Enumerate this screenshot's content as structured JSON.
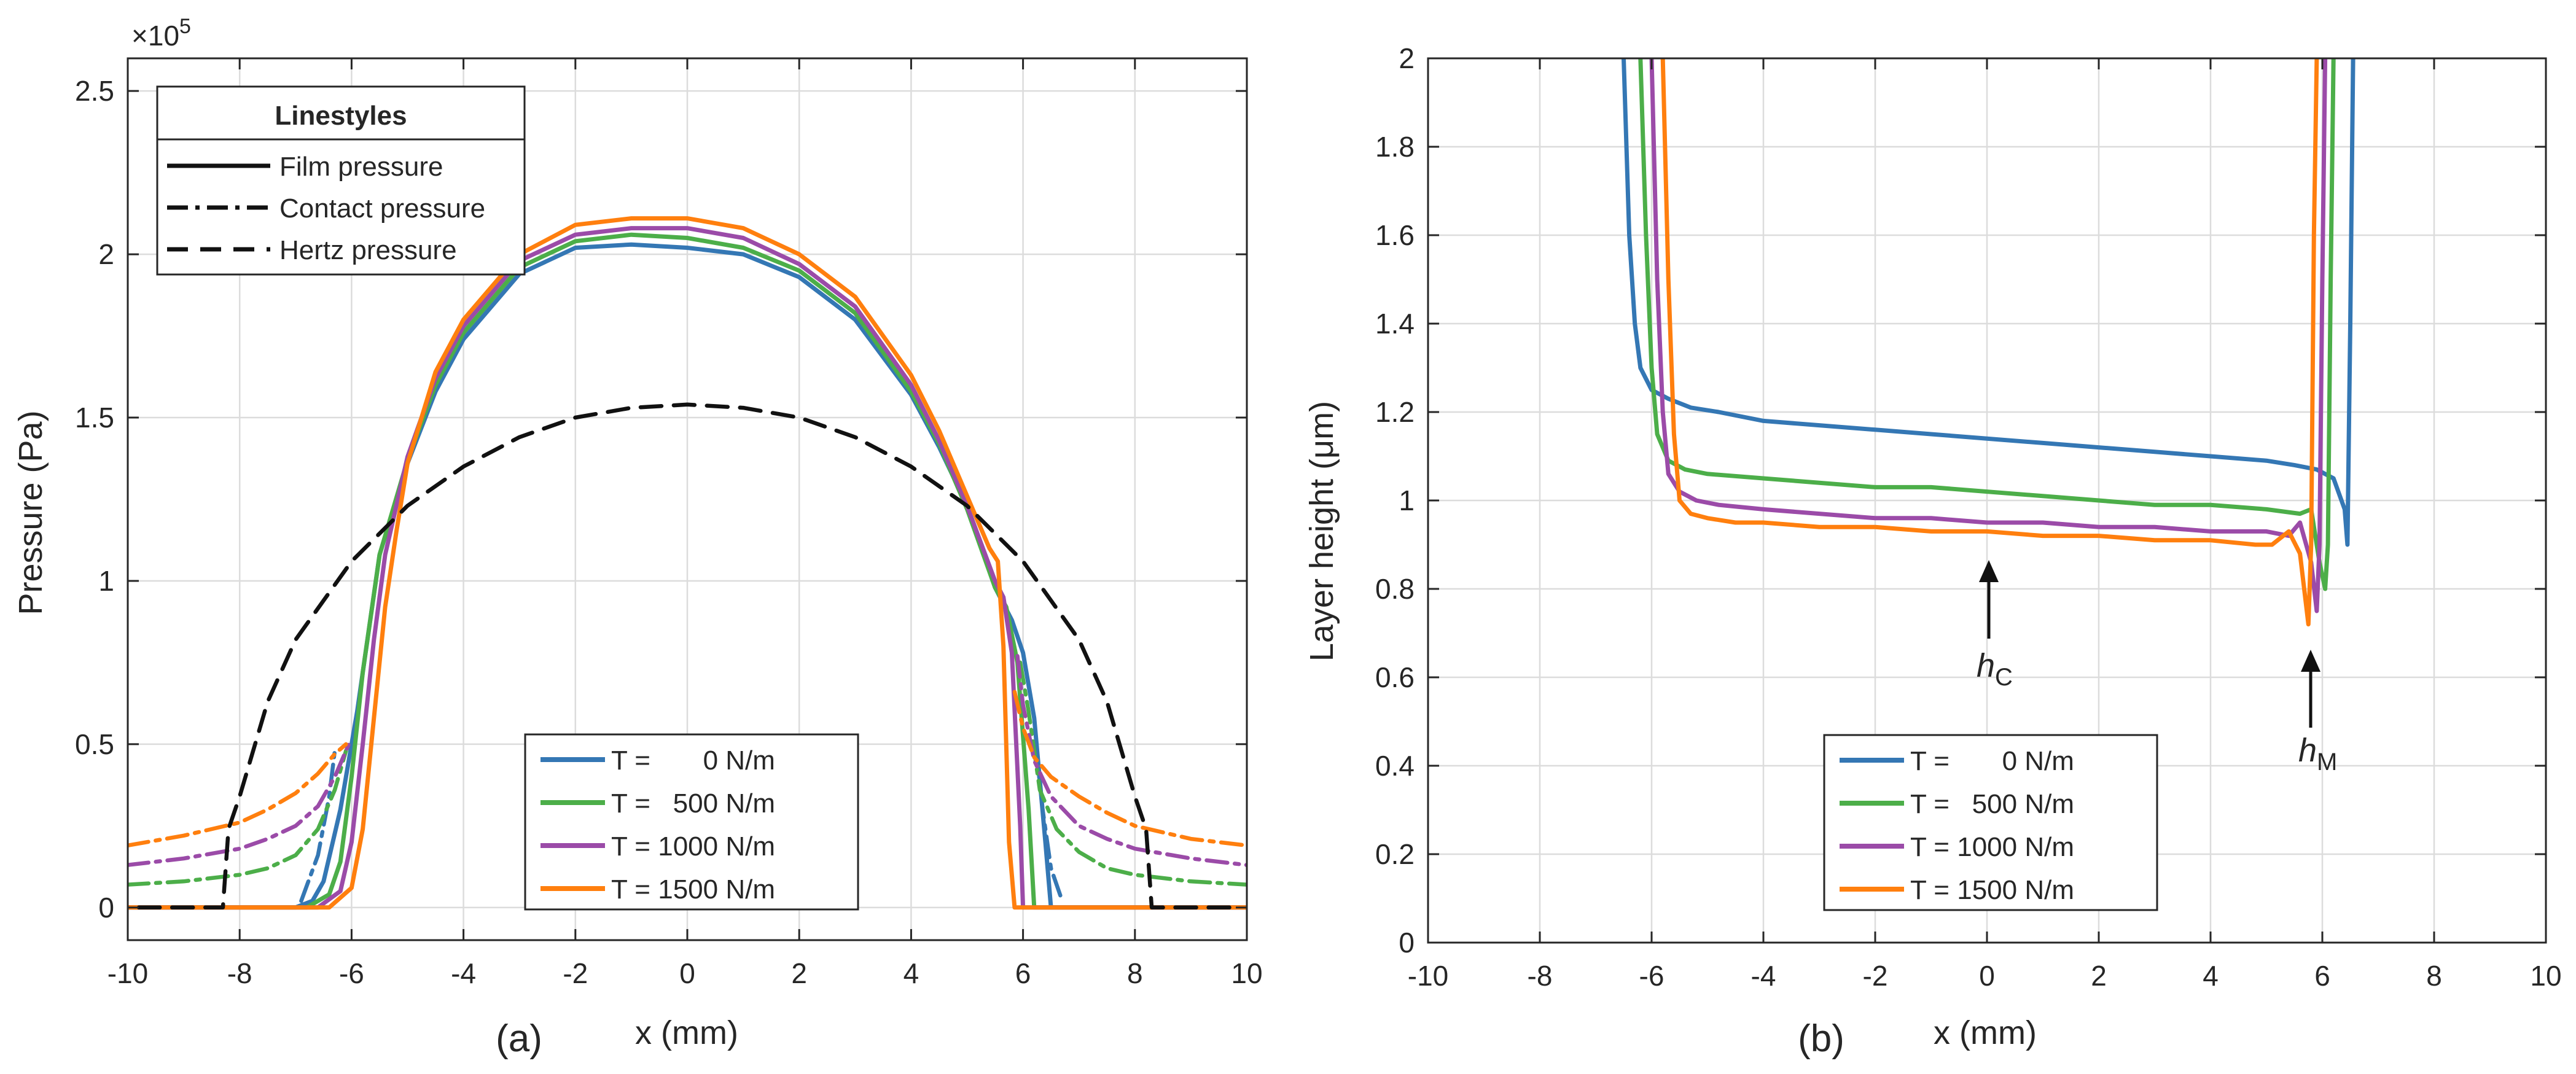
{
  "chart_data": [
    {
      "id": "a",
      "type": "line",
      "panel_label": "(a)",
      "xlabel": "x (mm)",
      "ylabel": "Pressure (Pa)",
      "exponent_label": "×10",
      "exponent_power": "5",
      "xlim": [
        -10,
        10
      ],
      "ylim": [
        -0.1,
        2.6
      ],
      "xticks": [
        -10,
        -8,
        -6,
        -4,
        -2,
        0,
        2,
        4,
        6,
        8,
        10
      ],
      "xtick_labels": [
        "-10",
        "-8",
        "-6",
        "-4",
        "-2",
        "0",
        "2",
        "4",
        "6",
        "8",
        "10"
      ],
      "yticks": [
        0,
        0.5,
        1,
        1.5,
        2,
        2.5
      ],
      "ytick_labels": [
        "0",
        "0.5",
        "1",
        "1.5",
        "2",
        "2.5"
      ],
      "grid": true,
      "linestyle_legend": {
        "title": "Linestyles",
        "position": "top-left",
        "entries": [
          {
            "label": "Film pressure",
            "style": "solid"
          },
          {
            "label": "Contact pressure",
            "style": "dashdot"
          },
          {
            "label": "Hertz pressure",
            "style": "dashed"
          }
        ]
      },
      "legend": {
        "position": "bottom-center",
        "entries": [
          {
            "label": "T =       0 N/m",
            "color": "#3477b4"
          },
          {
            "label": "T =   500 N/m",
            "color": "#4cae49"
          },
          {
            "label": "T = 1000 N/m",
            "color": "#9b4ba8"
          },
          {
            "label": "T = 1500 N/m",
            "color": "#ff7f0e"
          }
        ]
      },
      "series": [
        {
          "name": "Film pressure, T = 0 N/m",
          "color": "#3477b4",
          "style": "solid",
          "x": [
            -10,
            -7.0,
            -6.7,
            -6.5,
            -6.2,
            -5.9,
            -5.5,
            -5.0,
            -4.5,
            -4.0,
            -3.0,
            -2.0,
            -1.0,
            0,
            1.0,
            2.0,
            3.0,
            4.0,
            4.5,
            5.0,
            5.5,
            5.8,
            6.0,
            6.2,
            6.4,
            6.5,
            10
          ],
          "y": [
            0,
            0,
            0.02,
            0.08,
            0.3,
            0.6,
            1.08,
            1.36,
            1.58,
            1.74,
            1.94,
            2.02,
            2.03,
            2.02,
            2.0,
            1.93,
            1.8,
            1.57,
            1.41,
            1.23,
            0.98,
            0.88,
            0.78,
            0.58,
            0.2,
            0,
            0
          ]
        },
        {
          "name": "Film pressure, T = 500 N/m",
          "color": "#4cae49",
          "style": "solid",
          "x": [
            -10,
            -6.8,
            -6.4,
            -6.2,
            -6.0,
            -5.8,
            -5.5,
            -5.0,
            -4.5,
            -4.0,
            -3.0,
            -2.0,
            -1.0,
            0,
            1.0,
            2.0,
            3.0,
            4.0,
            4.5,
            5.0,
            5.5,
            5.7,
            5.9,
            6.1,
            6.2,
            10
          ],
          "y": [
            0,
            0,
            0.04,
            0.14,
            0.4,
            0.72,
            1.08,
            1.37,
            1.6,
            1.76,
            1.96,
            2.04,
            2.06,
            2.05,
            2.02,
            1.95,
            1.82,
            1.58,
            1.42,
            1.22,
            0.98,
            0.92,
            0.75,
            0.3,
            0,
            0
          ]
        },
        {
          "name": "Film pressure, T = 1000 N/m",
          "color": "#9b4ba8",
          "style": "solid",
          "x": [
            -10,
            -6.6,
            -6.2,
            -6.0,
            -5.8,
            -5.6,
            -5.4,
            -5.0,
            -4.5,
            -4.0,
            -3.0,
            -2.0,
            -1.0,
            0,
            1.0,
            2.0,
            3.0,
            4.0,
            4.5,
            5.0,
            5.5,
            5.65,
            5.8,
            5.95,
            6.0,
            10
          ],
          "y": [
            0,
            0,
            0.05,
            0.2,
            0.5,
            0.82,
            1.08,
            1.38,
            1.62,
            1.78,
            1.98,
            2.06,
            2.08,
            2.08,
            2.05,
            1.97,
            1.84,
            1.6,
            1.43,
            1.23,
            1.0,
            0.95,
            0.78,
            0.25,
            0,
            0
          ]
        },
        {
          "name": "Film pressure, T = 1500 N/m",
          "color": "#ff7f0e",
          "style": "solid",
          "x": [
            -10,
            -6.4,
            -6.0,
            -5.8,
            -5.6,
            -5.4,
            -5.2,
            -5.0,
            -4.5,
            -4.0,
            -3.0,
            -2.0,
            -1.0,
            0,
            1.0,
            2.0,
            3.0,
            4.0,
            4.5,
            5.0,
            5.4,
            5.55,
            5.65,
            5.75,
            5.85,
            10
          ],
          "y": [
            0,
            0,
            0.06,
            0.24,
            0.58,
            0.92,
            1.15,
            1.36,
            1.64,
            1.8,
            2.0,
            2.09,
            2.11,
            2.11,
            2.08,
            2.0,
            1.87,
            1.63,
            1.46,
            1.26,
            1.1,
            1.06,
            0.8,
            0.2,
            0,
            0
          ]
        },
        {
          "name": "Contact pressure, T = 0 N/m (left)",
          "color": "#3477b4",
          "style": "dashdot",
          "x": [
            -6.9,
            -6.6,
            -6.4,
            -6.3
          ],
          "y": [
            0.02,
            0.16,
            0.34,
            0.48
          ]
        },
        {
          "name": "Contact pressure, T = 0 N/m (right)",
          "color": "#3477b4",
          "style": "dashdot",
          "x": [
            6.25,
            6.35,
            6.5,
            6.7
          ],
          "y": [
            0.46,
            0.3,
            0.12,
            0.02
          ]
        },
        {
          "name": "Contact pressure, T = 500 N/m (left)",
          "color": "#4cae49",
          "style": "dashdot",
          "x": [
            -10,
            -9,
            -8,
            -7.5,
            -7,
            -6.6,
            -6.3,
            -6.1
          ],
          "y": [
            0.07,
            0.08,
            0.1,
            0.12,
            0.16,
            0.24,
            0.36,
            0.48
          ]
        },
        {
          "name": "Contact pressure, T = 500 N/m (right)",
          "color": "#4cae49",
          "style": "dashdot",
          "x": [
            5.95,
            6.1,
            6.3,
            6.6,
            7,
            7.5,
            8,
            9,
            10
          ],
          "y": [
            0.75,
            0.6,
            0.36,
            0.24,
            0.17,
            0.12,
            0.1,
            0.08,
            0.07
          ]
        },
        {
          "name": "Contact pressure, T = 1000 N/m (left)",
          "color": "#9b4ba8",
          "style": "dashdot",
          "x": [
            -10,
            -9,
            -8,
            -7.5,
            -7,
            -6.6,
            -6.3,
            -6.05
          ],
          "y": [
            0.13,
            0.15,
            0.18,
            0.21,
            0.25,
            0.31,
            0.4,
            0.5
          ]
        },
        {
          "name": "Contact pressure, T = 1000 N/m (right)",
          "color": "#9b4ba8",
          "style": "dashdot",
          "x": [
            5.9,
            6.0,
            6.2,
            6.5,
            7,
            7.5,
            8,
            9,
            10
          ],
          "y": [
            0.77,
            0.62,
            0.45,
            0.34,
            0.25,
            0.21,
            0.18,
            0.15,
            0.13
          ]
        },
        {
          "name": "Contact pressure, T = 1500 N/m (left)",
          "color": "#ff7f0e",
          "style": "dashdot",
          "x": [
            -10,
            -9,
            -8,
            -7.5,
            -7,
            -6.6,
            -6.3,
            -6.1
          ],
          "y": [
            0.19,
            0.22,
            0.26,
            0.3,
            0.35,
            0.41,
            0.47,
            0.5
          ]
        },
        {
          "name": "Contact pressure, T = 1500 N/m (right)",
          "color": "#ff7f0e",
          "style": "dashdot",
          "x": [
            5.85,
            6.0,
            6.2,
            6.5,
            7,
            7.5,
            8,
            9,
            10
          ],
          "y": [
            0.66,
            0.55,
            0.46,
            0.4,
            0.34,
            0.29,
            0.25,
            0.21,
            0.19
          ]
        },
        {
          "name": "Hertz pressure",
          "color": "#111111",
          "style": "dashed",
          "x": [
            -9.8,
            -8.3,
            -8.2,
            -8.0,
            -7.5,
            -7.0,
            -6.0,
            -5.0,
            -4.0,
            -3.0,
            -2.0,
            -1.0,
            0,
            1.0,
            2.0,
            3.0,
            4.0,
            5.0,
            6.0,
            7.0,
            7.5,
            8.0,
            8.2,
            8.3,
            9.8
          ],
          "y": [
            0,
            0,
            0.24,
            0.34,
            0.63,
            0.82,
            1.06,
            1.23,
            1.35,
            1.44,
            1.5,
            1.53,
            1.54,
            1.53,
            1.5,
            1.44,
            1.35,
            1.23,
            1.06,
            0.82,
            0.63,
            0.34,
            0.24,
            0,
            0
          ]
        }
      ]
    },
    {
      "id": "b",
      "type": "line",
      "panel_label": "(b)",
      "xlabel": "x (mm)",
      "ylabel": "Layer height (μm)",
      "xlim": [
        -10,
        10
      ],
      "ylim": [
        0,
        2
      ],
      "xticks": [
        -10,
        -8,
        -6,
        -4,
        -2,
        0,
        2,
        4,
        6,
        8,
        10
      ],
      "xtick_labels": [
        "-10",
        "-8",
        "-6",
        "-4",
        "-2",
        "0",
        "2",
        "4",
        "6",
        "8",
        "10"
      ],
      "yticks": [
        0,
        0.2,
        0.4,
        0.6,
        0.8,
        1,
        1.2,
        1.4,
        1.6,
        1.8,
        2
      ],
      "ytick_labels": [
        "0",
        "0.2",
        "0.4",
        "0.6",
        "0.8",
        "1",
        "1.2",
        "1.4",
        "1.6",
        "1.8",
        "2"
      ],
      "grid": true,
      "annotations": [
        {
          "label": "h",
          "subscript": "C",
          "arrow_to": [
            0,
            0.86
          ],
          "arrow_from": [
            0,
            0.68
          ]
        },
        {
          "label": "h",
          "subscript": "M",
          "arrow_to": [
            5.8,
            0.66
          ],
          "arrow_from": [
            5.8,
            0.48
          ]
        }
      ],
      "legend": {
        "position": "bottom-center",
        "entries": [
          {
            "label": "T =       0 N/m",
            "color": "#3477b4"
          },
          {
            "label": "T =   500 N/m",
            "color": "#4cae49"
          },
          {
            "label": "T = 1000 N/m",
            "color": "#9b4ba8"
          },
          {
            "label": "T = 1500 N/m",
            "color": "#ff7f0e"
          }
        ]
      },
      "series": [
        {
          "name": "T = 0 N/m",
          "color": "#3477b4",
          "style": "solid",
          "x": [
            -6.5,
            -6.4,
            -6.3,
            -6.2,
            -6.0,
            -5.7,
            -5.3,
            -4.8,
            -4.0,
            -3.0,
            -2.0,
            -1.0,
            0,
            1.0,
            2.0,
            3.0,
            4.0,
            5.0,
            5.5,
            5.9,
            6.2,
            6.4,
            6.45,
            6.5,
            6.55
          ],
          "y": [
            2.0,
            1.6,
            1.4,
            1.3,
            1.25,
            1.23,
            1.21,
            1.2,
            1.18,
            1.17,
            1.16,
            1.15,
            1.14,
            1.13,
            1.12,
            1.11,
            1.1,
            1.09,
            1.08,
            1.07,
            1.05,
            0.98,
            0.9,
            1.4,
            2.0
          ]
        },
        {
          "name": "T = 500 N/m",
          "color": "#4cae49",
          "style": "solid",
          "x": [
            -6.2,
            -6.1,
            -6.0,
            -5.9,
            -5.7,
            -5.4,
            -5.0,
            -4.0,
            -3.0,
            -2.0,
            -1.0,
            0,
            1.0,
            2.0,
            3.0,
            4.0,
            5.0,
            5.6,
            5.8,
            5.95,
            6.05,
            6.1,
            6.15,
            6.2
          ],
          "y": [
            2.0,
            1.6,
            1.3,
            1.15,
            1.09,
            1.07,
            1.06,
            1.05,
            1.04,
            1.03,
            1.03,
            1.02,
            1.01,
            1.0,
            0.99,
            0.99,
            0.98,
            0.97,
            0.98,
            0.86,
            0.8,
            0.9,
            1.5,
            2.0
          ]
        },
        {
          "name": "T = 1000 N/m",
          "color": "#9b4ba8",
          "style": "solid",
          "x": [
            -6.0,
            -5.9,
            -5.8,
            -5.7,
            -5.5,
            -5.2,
            -4.8,
            -4.0,
            -3.0,
            -2.0,
            -1.0,
            0,
            1.0,
            2.0,
            3.0,
            4.0,
            5.0,
            5.4,
            5.6,
            5.8,
            5.9,
            5.95,
            6.0,
            6.05
          ],
          "y": [
            2.0,
            1.5,
            1.2,
            1.06,
            1.02,
            1.0,
            0.99,
            0.98,
            0.97,
            0.96,
            0.96,
            0.95,
            0.95,
            0.94,
            0.94,
            0.93,
            0.93,
            0.92,
            0.95,
            0.86,
            0.75,
            0.9,
            1.5,
            2.0
          ]
        },
        {
          "name": "T = 1500 N/m",
          "color": "#ff7f0e",
          "style": "solid",
          "x": [
            -5.8,
            -5.7,
            -5.6,
            -5.5,
            -5.3,
            -5.0,
            -4.5,
            -4.0,
            -3.0,
            -2.0,
            -1.0,
            0,
            1.0,
            2.0,
            3.0,
            4.0,
            4.8,
            5.1,
            5.4,
            5.6,
            5.75,
            5.8,
            5.85,
            5.9
          ],
          "y": [
            2.0,
            1.5,
            1.15,
            1.0,
            0.97,
            0.96,
            0.95,
            0.95,
            0.94,
            0.94,
            0.93,
            0.93,
            0.92,
            0.92,
            0.91,
            0.91,
            0.9,
            0.9,
            0.93,
            0.88,
            0.72,
            0.9,
            1.6,
            2.0
          ]
        }
      ]
    }
  ]
}
